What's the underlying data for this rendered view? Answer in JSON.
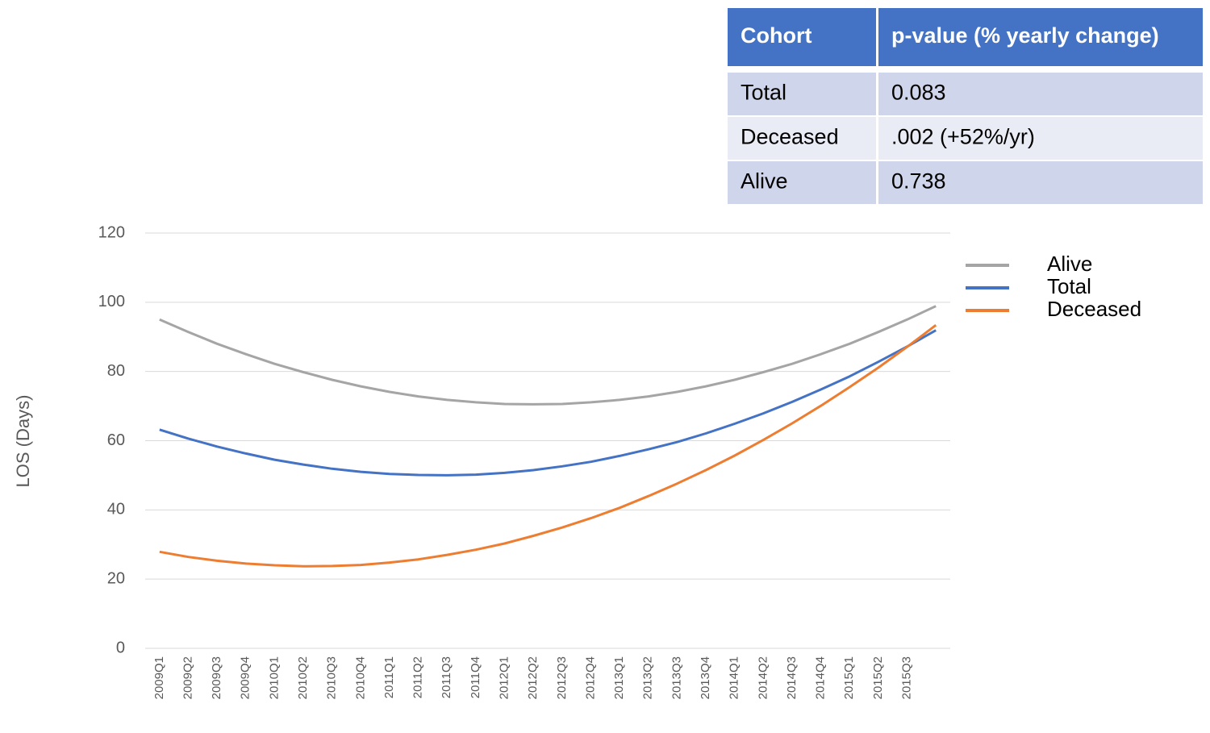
{
  "chart_data": {
    "type": "line",
    "ylabel": "LOS (Days)",
    "categories": [
      "2009Q1",
      "2009Q2",
      "2009Q3",
      "2009Q4",
      "2010Q1",
      "2010Q2",
      "2010Q3",
      "2010Q4",
      "2011Q1",
      "2011Q2",
      "2011Q3",
      "2011Q4",
      "2012Q1",
      "2012Q2",
      "2012Q3",
      "2012Q4",
      "2013Q1",
      "2013Q2",
      "2013Q3",
      "2013Q4",
      "2014Q1",
      "2014Q2",
      "2014Q3",
      "2014Q4",
      "2015Q1",
      "2015Q2",
      "2015Q3",
      null
    ],
    "series": [
      {
        "name": "Alive",
        "color": "#a5a5a5",
        "values": [
          95.0,
          91.4,
          88.0,
          85.0,
          82.2,
          79.8,
          77.6,
          75.7,
          74.1,
          72.8,
          71.8,
          71.1,
          70.6,
          70.5,
          70.6,
          71.1,
          71.8,
          72.8,
          74.1,
          75.7,
          77.6,
          79.8,
          82.2,
          85.0,
          88.0,
          91.4,
          95.0,
          98.9
        ]
      },
      {
        "name": "Total",
        "color": "#4472c4",
        "values": [
          63.2,
          60.6,
          58.3,
          56.3,
          54.5,
          53.1,
          51.9,
          51.0,
          50.4,
          50.1,
          50.0,
          50.2,
          50.7,
          51.5,
          52.6,
          53.9,
          55.6,
          57.5,
          59.6,
          62.1,
          64.9,
          67.9,
          71.2,
          74.8,
          78.6,
          82.8,
          87.2,
          91.9
        ]
      },
      {
        "name": "Deceased",
        "color": "#ed7d31",
        "values": [
          27.9,
          26.4,
          25.3,
          24.5,
          24.0,
          23.7,
          23.8,
          24.1,
          24.8,
          25.7,
          27.0,
          28.5,
          30.3,
          32.5,
          34.9,
          37.6,
          40.6,
          44.0,
          47.6,
          51.5,
          55.7,
          60.2,
          65.0,
          70.1,
          75.5,
          81.1,
          87.1,
          93.4
        ]
      }
    ],
    "ylim": [
      0,
      120
    ],
    "yticks": [
      0,
      20,
      40,
      60,
      80,
      100,
      120
    ],
    "grid": true,
    "legend": "right"
  },
  "table": {
    "header": [
      "Cohort",
      "p-value (% yearly change)"
    ],
    "rows": [
      [
        "Total",
        "0.083"
      ],
      [
        "Deceased",
        ".002 (+52%/yr)"
      ],
      [
        "Alive",
        "0.738"
      ]
    ]
  }
}
